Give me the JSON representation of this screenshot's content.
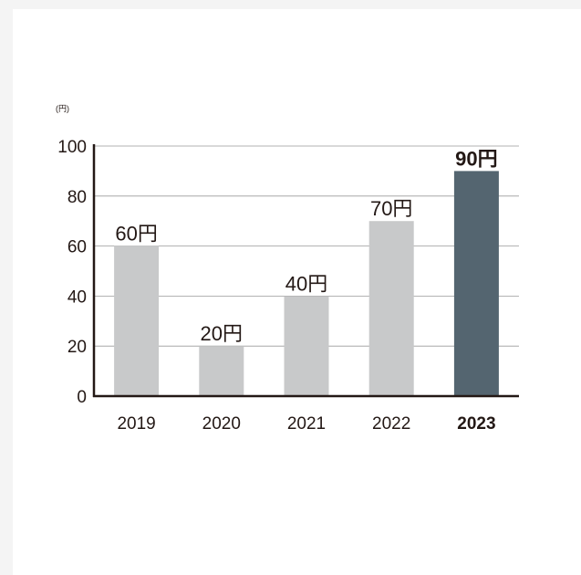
{
  "chart_data": {
    "type": "bar",
    "unit_label": "(円)",
    "categories": [
      "2019",
      "2020",
      "2021",
      "2022",
      "2023"
    ],
    "values": [
      60,
      20,
      40,
      70,
      90
    ],
    "data_labels": [
      "60円",
      "20円",
      "40円",
      "70円",
      "90円"
    ],
    "highlight_index": 4,
    "ylim": [
      0,
      100
    ],
    "yticks": [
      "0",
      "20",
      "40",
      "60",
      "80",
      "100"
    ],
    "grid": true,
    "colors": {
      "bar": "#c8c9ca",
      "highlight": "#546570",
      "axis": "#231815",
      "grid": "#9a9a9a",
      "text": "#231815"
    }
  }
}
